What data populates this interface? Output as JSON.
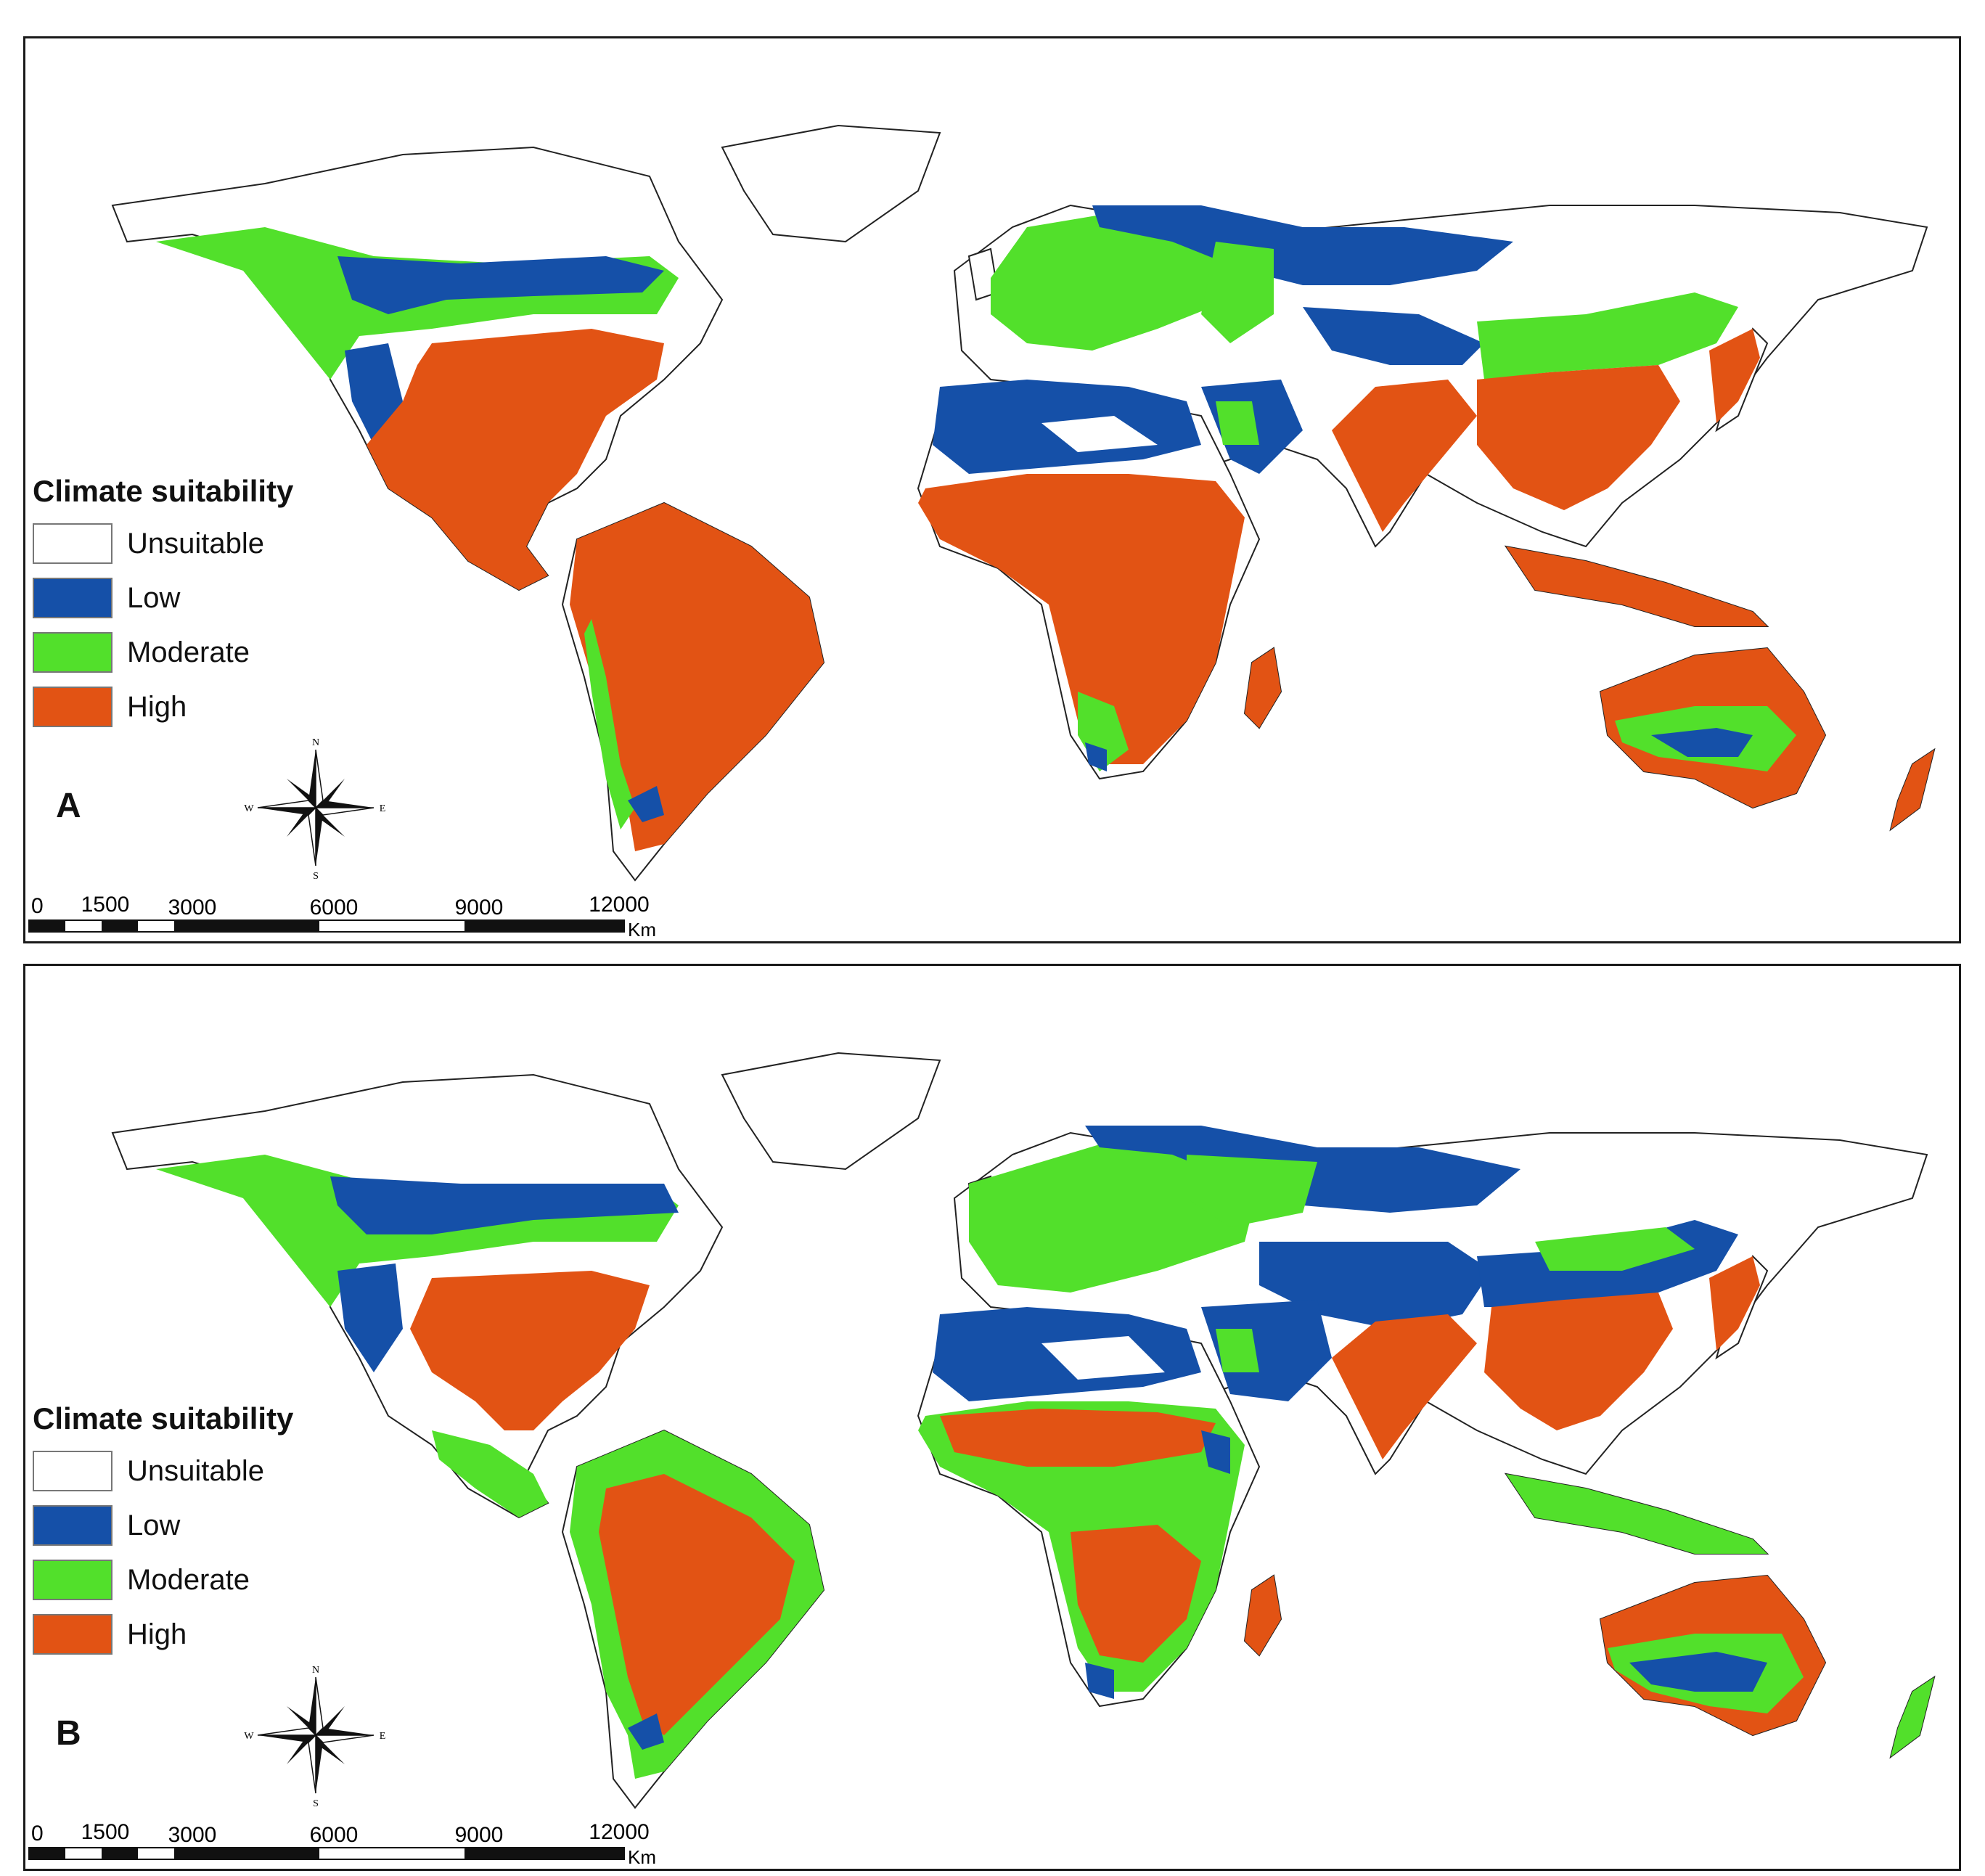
{
  "legend": {
    "title": "Climate suitability",
    "items": [
      {
        "label": "Unsuitable",
        "color": "#ffffff"
      },
      {
        "label": "Low",
        "color": "#1550a8"
      },
      {
        "label": "Moderate",
        "color": "#52e02b"
      },
      {
        "label": "High",
        "color": "#e25314"
      }
    ]
  },
  "compass": {
    "n": "N",
    "s": "S",
    "e": "E",
    "w": "W"
  },
  "scalebar": {
    "ticks": [
      "0",
      "1500",
      "3000",
      "6000",
      "9000",
      "12000"
    ],
    "unit": "Km"
  },
  "panels": [
    {
      "letter": "A"
    },
    {
      "letter": "B"
    }
  ]
}
